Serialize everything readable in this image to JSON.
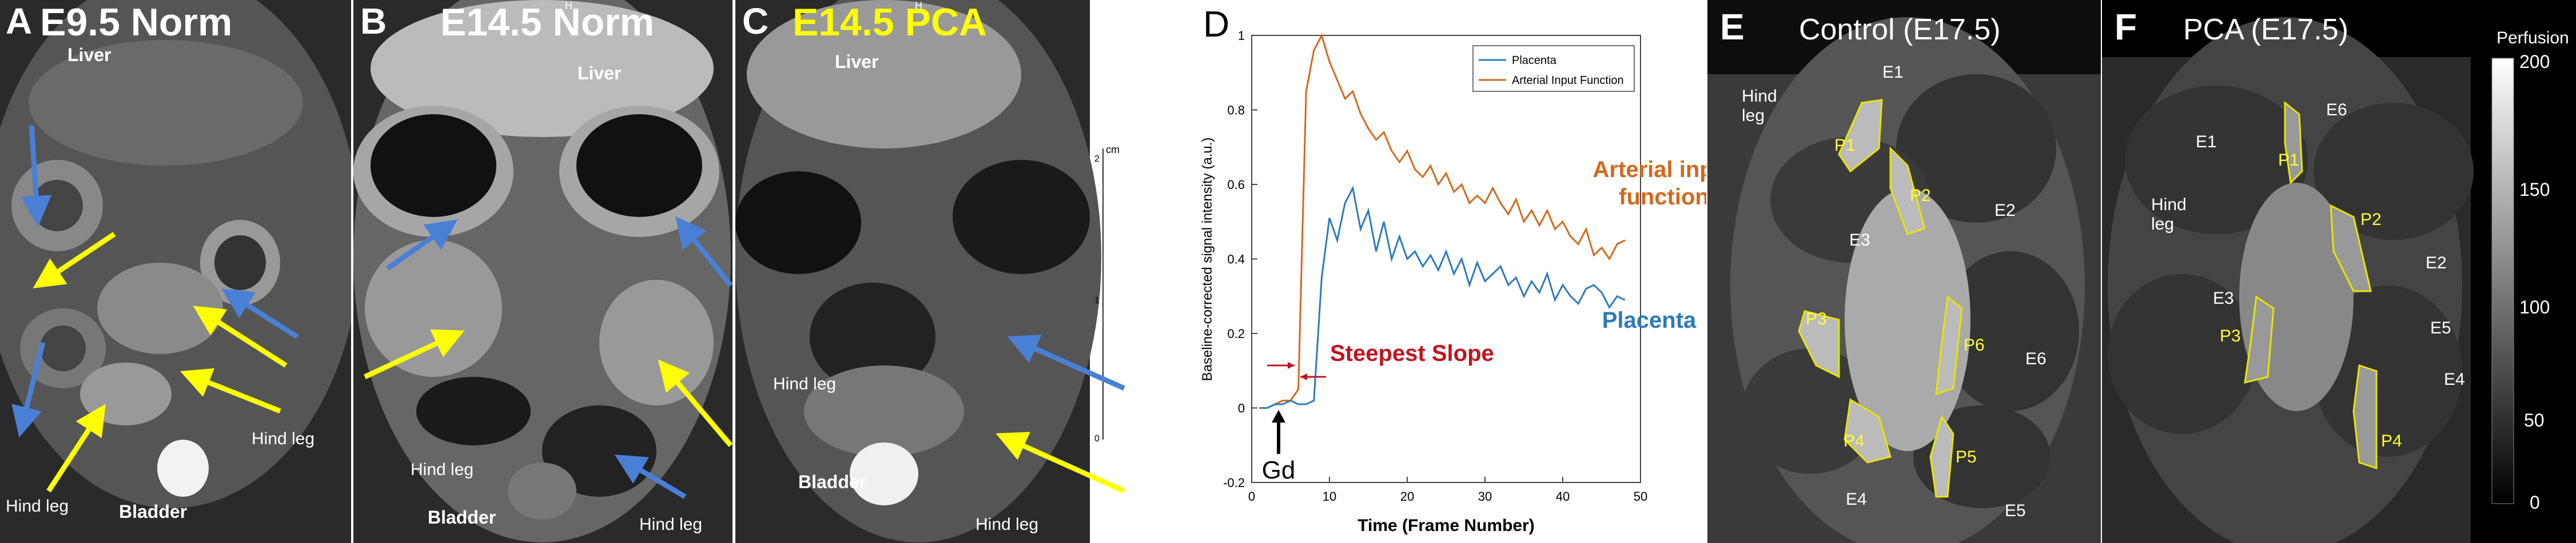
{
  "panels": {
    "A": {
      "letter": "A",
      "title": "E9.5 Norm",
      "labels": {
        "liver": "Liver",
        "hind_leg_right": "Hind leg",
        "hind_leg_left": "Hind leg",
        "bladder": "Bladder"
      }
    },
    "B": {
      "letter": "B",
      "title": "E14.5 Norm",
      "superscript": "H",
      "labels": {
        "liver": "Liver",
        "hind_leg_left": "Hind leg",
        "hind_leg_right": "Hind leg",
        "bladder": "Bladder"
      }
    },
    "C": {
      "letter": "C",
      "title": "E14.5 PCA",
      "superscript": "H",
      "labels": {
        "liver": "Liver",
        "hind_leg": "Hind leg",
        "hind_leg_bottom": "Hind leg",
        "bladder": "Bladder"
      },
      "scale": {
        "unit": "cm",
        "ticks": [
          "2",
          "1",
          "0"
        ]
      }
    },
    "D": {
      "letter": "D"
    },
    "E": {
      "letter": "E",
      "title": "Control (E17.5)",
      "hind_leg": "Hind\nleg",
      "embryos": [
        "E1",
        "E2",
        "E3",
        "E4",
        "E5",
        "E6"
      ],
      "placentas": [
        "P1",
        "P2",
        "P3",
        "P4",
        "P5",
        "P6"
      ]
    },
    "F": {
      "letter": "F",
      "title": "PCA (E17.5)",
      "hind_leg": "Hind\nleg",
      "embryos": [
        "E1",
        "E2",
        "E3",
        "E4",
        "E5",
        "E6"
      ],
      "placentas": [
        "P1",
        "P2",
        "P3",
        "P4"
      ],
      "colorbar": {
        "title": "Perfusion",
        "ticks": [
          "200",
          "150",
          "100",
          "50",
          "0"
        ]
      }
    }
  },
  "colors": {
    "placenta_outline": "#e6e600",
    "arrow_yellow": "#ffff00",
    "arrow_blue": "#4a7fd6",
    "series_placenta": "#2e7ab8",
    "series_aif": "#d2691e",
    "annot_red": "#c0141e"
  },
  "chart_data": {
    "type": "line",
    "title": "",
    "xlabel": "Time (Frame Number)",
    "ylabel": "Baseline-corrected signal intensity (a.u.)",
    "xlim": [
      0,
      50
    ],
    "ylim": [
      -0.2,
      1
    ],
    "xticks": [
      "0",
      "10",
      "20",
      "30",
      "40",
      "50"
    ],
    "yticks": [
      "-0.2",
      "0",
      "0.2",
      "0.4",
      "0.6",
      "0.8",
      "1"
    ],
    "legend": {
      "placement": "top-right",
      "entries": [
        "Placenta",
        "Arterial Input Function"
      ]
    },
    "annotations": {
      "aif": "Arterial input\nfunction",
      "placenta": "Placenta",
      "slope": "Steepest Slope",
      "gd": "Gd"
    },
    "series": [
      {
        "name": "Placenta",
        "color": "#2e7ab8",
        "x": [
          1,
          2,
          3,
          4,
          5,
          6,
          7,
          8,
          9,
          10,
          11,
          12,
          13,
          14,
          15,
          16,
          17,
          18,
          19,
          20,
          21,
          22,
          23,
          24,
          25,
          26,
          27,
          28,
          29,
          30,
          31,
          32,
          33,
          34,
          35,
          36,
          37,
          38,
          39,
          40,
          41,
          42,
          43,
          44,
          45,
          46,
          47,
          48
        ],
        "y": [
          0.0,
          0.0,
          0.01,
          0.01,
          0.02,
          0.01,
          0.01,
          0.02,
          0.35,
          0.51,
          0.45,
          0.55,
          0.59,
          0.48,
          0.53,
          0.42,
          0.5,
          0.4,
          0.46,
          0.4,
          0.42,
          0.38,
          0.41,
          0.37,
          0.42,
          0.36,
          0.4,
          0.33,
          0.39,
          0.34,
          0.36,
          0.38,
          0.33,
          0.35,
          0.3,
          0.34,
          0.31,
          0.36,
          0.29,
          0.33,
          0.3,
          0.28,
          0.32,
          0.33,
          0.31,
          0.27,
          0.3,
          0.29
        ]
      },
      {
        "name": "Arterial Input Function",
        "color": "#d2691e",
        "x": [
          1,
          2,
          3,
          4,
          5,
          6,
          7,
          8,
          9,
          10,
          11,
          12,
          13,
          14,
          15,
          16,
          17,
          18,
          19,
          20,
          21,
          22,
          23,
          24,
          25,
          26,
          27,
          28,
          29,
          30,
          31,
          32,
          33,
          34,
          35,
          36,
          37,
          38,
          39,
          40,
          41,
          42,
          43,
          44,
          45,
          46,
          47,
          48
        ],
        "y": [
          0.0,
          0.0,
          0.01,
          0.02,
          0.02,
          0.05,
          0.85,
          0.96,
          1.0,
          0.93,
          0.88,
          0.83,
          0.85,
          0.79,
          0.75,
          0.72,
          0.74,
          0.69,
          0.66,
          0.69,
          0.64,
          0.62,
          0.65,
          0.6,
          0.63,
          0.58,
          0.6,
          0.55,
          0.57,
          0.55,
          0.59,
          0.55,
          0.52,
          0.56,
          0.5,
          0.53,
          0.49,
          0.53,
          0.48,
          0.5,
          0.46,
          0.44,
          0.48,
          0.41,
          0.43,
          0.4,
          0.44,
          0.45
        ]
      }
    ]
  }
}
